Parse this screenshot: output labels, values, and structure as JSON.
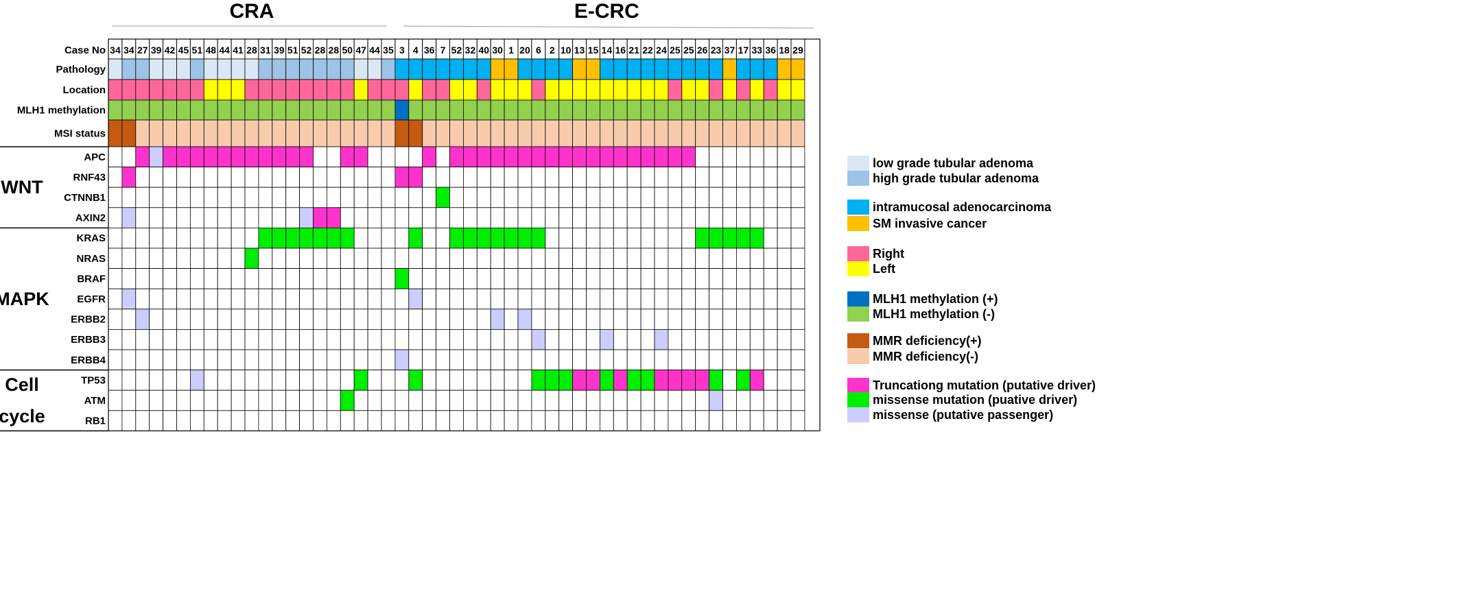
{
  "chart_data": {
    "type": "heatmap",
    "groups": [
      {
        "label": "CRA",
        "start": 0,
        "end": 21
      },
      {
        "label": "E-CRC",
        "start": 21,
        "end": 52
      }
    ],
    "case_label": "Case No",
    "cases": [
      "34",
      "34",
      "27",
      "39",
      "42",
      "45",
      "51",
      "48",
      "44",
      "41",
      "28",
      "31",
      "39",
      "51",
      "52",
      "28",
      "28",
      "50",
      "47",
      "44",
      "35",
      "3",
      "4",
      "36",
      "7",
      "52",
      "32",
      "40",
      "30",
      "1",
      "20",
      "6",
      "2",
      "10",
      "13",
      "15",
      "14",
      "16",
      "21",
      "22",
      "24",
      "25",
      "25",
      "26",
      "23",
      "37",
      "17",
      "33",
      "36",
      "18",
      "29"
    ],
    "clinical_rows": [
      {
        "label": "Pathology",
        "values": [
          "L",
          "H",
          "H",
          "L",
          "L",
          "L",
          "H",
          "L",
          "L",
          "L",
          "L",
          "H",
          "H",
          "H",
          "H",
          "H",
          "H",
          "H",
          "L",
          "L",
          "H",
          "I",
          "I",
          "I",
          "I",
          "I",
          "I",
          "I",
          "S",
          "S",
          "I",
          "I",
          "I",
          "I",
          "S",
          "S",
          "I",
          "I",
          "I",
          "I",
          "I",
          "I",
          "I",
          "I",
          "I",
          "S",
          "I",
          "I",
          "I",
          "S",
          "S"
        ]
      },
      {
        "label": "Location",
        "values": [
          "R",
          "R",
          "R",
          "R",
          "R",
          "R",
          "R",
          "Y",
          "Y",
          "Y",
          "R",
          "R",
          "R",
          "R",
          "R",
          "R",
          "R",
          "R",
          "Y",
          "R",
          "R",
          "R",
          "Y",
          "R",
          "R",
          "Y",
          "Y",
          "R",
          "Y",
          "Y",
          "Y",
          "R",
          "Y",
          "Y",
          "Y",
          "Y",
          "Y",
          "Y",
          "Y",
          "Y",
          "Y",
          "R",
          "Y",
          "Y",
          "R",
          "Y",
          "R",
          "Y",
          "R",
          "Y",
          "Y"
        ]
      },
      {
        "label": "MLH1 methylation",
        "values": [
          "G",
          "G",
          "G",
          "G",
          "G",
          "G",
          "G",
          "G",
          "G",
          "G",
          "G",
          "G",
          "G",
          "G",
          "G",
          "G",
          "G",
          "G",
          "G",
          "G",
          "G",
          "B",
          "G",
          "G",
          "G",
          "G",
          "G",
          "G",
          "G",
          "G",
          "G",
          "G",
          "G",
          "G",
          "G",
          "G",
          "G",
          "G",
          "G",
          "G",
          "G",
          "G",
          "G",
          "G",
          "G",
          "G",
          "G",
          "G",
          "G",
          "G",
          "G"
        ]
      },
      {
        "label": "MSI status",
        "values": [
          "D",
          "D",
          "P",
          "P",
          "P",
          "P",
          "P",
          "P",
          "P",
          "P",
          "P",
          "P",
          "P",
          "P",
          "P",
          "P",
          "P",
          "P",
          "P",
          "P",
          "P",
          "D",
          "D",
          "P",
          "P",
          "P",
          "P",
          "P",
          "P",
          "P",
          "P",
          "P",
          "P",
          "P",
          "P",
          "P",
          "P",
          "P",
          "P",
          "P",
          "P",
          "P",
          "P",
          "P",
          "P",
          "P",
          "P",
          "P",
          "P",
          "P",
          "P"
        ]
      }
    ],
    "pathway_groups": [
      {
        "label": "WNT",
        "rows": [
          {
            "gene": "APC",
            "cells": {
              "2": "T",
              "3": "P",
              "4": "T",
              "5": "T",
              "6": "T",
              "7": "T",
              "8": "T",
              "9": "T",
              "10": "T",
              "11": "T",
              "12": "T",
              "13": "T",
              "14": "T",
              "17": "T",
              "18": "T",
              "23": "T",
              "25": "T",
              "26": "T",
              "27": "T",
              "28": "T",
              "29": "T",
              "30": "T",
              "31": "T",
              "32": "T",
              "33": "T",
              "34": "T",
              "35": "T",
              "36": "T",
              "37": "T",
              "38": "T",
              "39": "T",
              "40": "T",
              "41": "T",
              "42": "T"
            }
          },
          {
            "gene": "RNF43",
            "cells": {
              "1": "T",
              "21": "T",
              "22": "T"
            }
          },
          {
            "gene": "CTNNB1",
            "cells": {
              "24": "M"
            }
          },
          {
            "gene": "AXIN2",
            "cells": {
              "1": "P",
              "14": "P",
              "15": "T",
              "16": "T"
            }
          }
        ]
      },
      {
        "label": "MAPK",
        "rows": [
          {
            "gene": "KRAS",
            "cells": {
              "11": "M",
              "12": "M",
              "13": "M",
              "14": "M",
              "15": "M",
              "16": "M",
              "17": "M",
              "22": "M",
              "25": "M",
              "26": "M",
              "27": "M",
              "28": "M",
              "29": "M",
              "30": "M",
              "31": "M",
              "43": "M",
              "44": "M",
              "45": "M",
              "46": "M",
              "47": "M"
            }
          },
          {
            "gene": "NRAS",
            "cells": {
              "10": "M"
            }
          },
          {
            "gene": "BRAF",
            "cells": {
              "21": "M"
            }
          },
          {
            "gene": "EGFR",
            "cells": {
              "1": "P",
              "22": "P"
            }
          },
          {
            "gene": "ERBB2",
            "cells": {
              "2": "P",
              "28": "P",
              "30": "P"
            }
          },
          {
            "gene": "ERBB3",
            "cells": {
              "31": "P",
              "36": "P",
              "40": "P"
            }
          },
          {
            "gene": "ERBB4",
            "cells": {
              "21": "P"
            }
          }
        ]
      },
      {
        "label": "Cell cycle",
        "label_lines": [
          "Cell",
          "cycle"
        ],
        "rows": [
          {
            "gene": "TP53",
            "cells": {
              "6": "P",
              "18": "M",
              "22": "M",
              "31": "M",
              "32": "M",
              "33": "M",
              "34": "T",
              "35": "T",
              "36": "M",
              "37": "T",
              "38": "M",
              "39": "M",
              "40": "T",
              "41": "T",
              "42": "T",
              "43": "T",
              "44": "M",
              "46": "M",
              "47": "T"
            }
          },
          {
            "gene": "ATM",
            "cells": {
              "17": "M",
              "44": "P"
            }
          },
          {
            "gene": "RB1",
            "cells": {}
          }
        ]
      }
    ],
    "colors": {
      "L": "#dae8f5",
      "H": "#9dc3e6",
      "I": "#00b0f0",
      "S": "#ffc000",
      "R": "#ff6699",
      "Y": "#ffff00",
      "B": "#0070c0",
      "G": "#92d050",
      "D": "#c55a11",
      "P": "#f8cbad",
      "T": "#ff33cc",
      "M": "#00ee00",
      "PP": "#ccccff"
    },
    "legend": [
      {
        "key": "L",
        "label": "low grade tubular adenoma"
      },
      {
        "key": "H",
        "label": "high grade tubular adenoma"
      },
      {
        "key": "I",
        "label": "intramucosal adenocarcinoma"
      },
      {
        "key": "S",
        "label": "SM invasive cancer"
      },
      {
        "key": "R",
        "label": "Right"
      },
      {
        "key": "Y",
        "label": "Left"
      },
      {
        "key": "B",
        "label": "MLH1 methylation (+)"
      },
      {
        "key": "G",
        "label": "MLH1 methylation (-)"
      },
      {
        "key": "D",
        "label": "MMR deficiency(+)"
      },
      {
        "key": "P",
        "label": "MMR deficiency(-)"
      },
      {
        "key": "T",
        "label": "Truncationg mutation (putative driver)"
      },
      {
        "key": "M",
        "label": "missense mutation (puative driver)"
      },
      {
        "key": "PP",
        "label": "missense (putative passenger)"
      }
    ]
  }
}
